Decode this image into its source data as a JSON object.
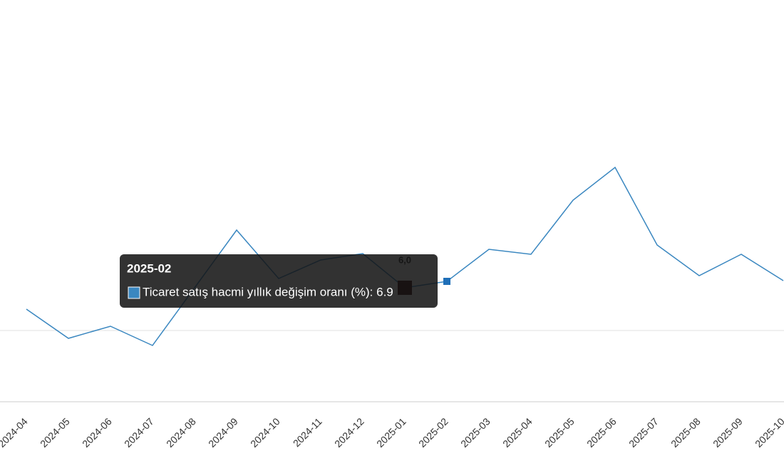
{
  "chart_data": {
    "type": "line",
    "x": [
      "2024-04",
      "2024-05",
      "2024-06",
      "2024-07",
      "2024-08",
      "2024-09",
      "2024-10",
      "2024-11",
      "2024-12",
      "2025-01",
      "2025-02",
      "2025-03",
      "2025-04",
      "2025-05",
      "2025-06",
      "2025-07",
      "2025-08",
      "2025-09",
      "2025-10"
    ],
    "series": [
      {
        "name": "Ticaret satış hacmi yıllık değişim oranı (%)",
        "color": "#3a87c0",
        "values": [
          3.0,
          -1.1,
          0.6,
          -2.1,
          6.0,
          14.1,
          7.3,
          9.9,
          10.8,
          6.0,
          6.9,
          11.4,
          10.7,
          18.3,
          22.9,
          12.0,
          7.7,
          10.7,
          7.0
        ],
        "value_labels": [
          null,
          null,
          null,
          null,
          null,
          null,
          null,
          null,
          null,
          "6,0",
          null,
          null,
          null,
          null,
          null,
          null,
          null,
          null,
          null
        ]
      }
    ],
    "ylim": [
      -10,
      40
    ],
    "tooltip": {
      "title": "2025-02",
      "text": "Ticaret satış hacmi yıllık değişim oranı (%): 6.9"
    }
  }
}
